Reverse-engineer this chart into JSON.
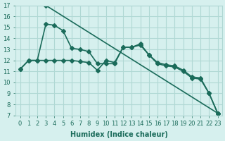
{
  "line_diagonal": {
    "x": [
      3,
      23
    ],
    "y": [
      17.0,
      7.2
    ],
    "color": "#1a6b5a",
    "marker": "D",
    "markersize": 3,
    "linewidth": 1.2
  },
  "line_upper": {
    "x": [
      0,
      1,
      2,
      3,
      4,
      5,
      6,
      7,
      8,
      9,
      10,
      11,
      12,
      13,
      14,
      15,
      16,
      17,
      18,
      19,
      20,
      21,
      22,
      23
    ],
    "y": [
      11.2,
      12.0,
      12.0,
      15.3,
      15.2,
      14.7,
      13.1,
      13.0,
      12.8,
      11.7,
      11.7,
      11.7,
      13.2,
      13.2,
      13.5,
      12.5,
      11.8,
      11.6,
      11.5,
      11.1,
      10.5,
      10.4,
      9.0,
      7.2
    ],
    "color": "#1a6b5a",
    "marker": "D",
    "markersize": 3,
    "linewidth": 1.2
  },
  "line_flat": {
    "x": [
      0,
      1,
      2,
      3,
      4,
      5,
      6,
      7,
      8,
      9,
      10,
      11,
      12,
      13,
      14,
      15,
      16,
      17,
      18,
      19,
      20,
      21,
      22,
      23
    ],
    "y": [
      11.2,
      12.0,
      12.0,
      12.0,
      12.0,
      12.0,
      12.0,
      11.9,
      11.8,
      11.1,
      12.0,
      11.8,
      13.2,
      13.2,
      13.4,
      12.5,
      11.7,
      11.5,
      11.4,
      11.0,
      10.4,
      10.3,
      9.0,
      7.2
    ],
    "color": "#1a6b5a",
    "marker": "D",
    "markersize": 3,
    "linewidth": 1.2
  },
  "xlabel": "Humidex (Indice chaleur)",
  "xlim": [
    -0.5,
    23.5
  ],
  "ylim": [
    7,
    17
  ],
  "xticks": [
    0,
    1,
    2,
    3,
    4,
    5,
    6,
    7,
    8,
    9,
    10,
    11,
    12,
    13,
    14,
    15,
    16,
    17,
    18,
    19,
    20,
    21,
    22,
    23
  ],
  "yticks": [
    7,
    8,
    9,
    10,
    11,
    12,
    13,
    14,
    15,
    16,
    17
  ],
  "bg_color": "#d6f0ee",
  "grid_color": "#b0d8d4",
  "line_color": "#1a6b5a",
  "tick_fontsize": 6,
  "xlabel_fontsize": 7
}
